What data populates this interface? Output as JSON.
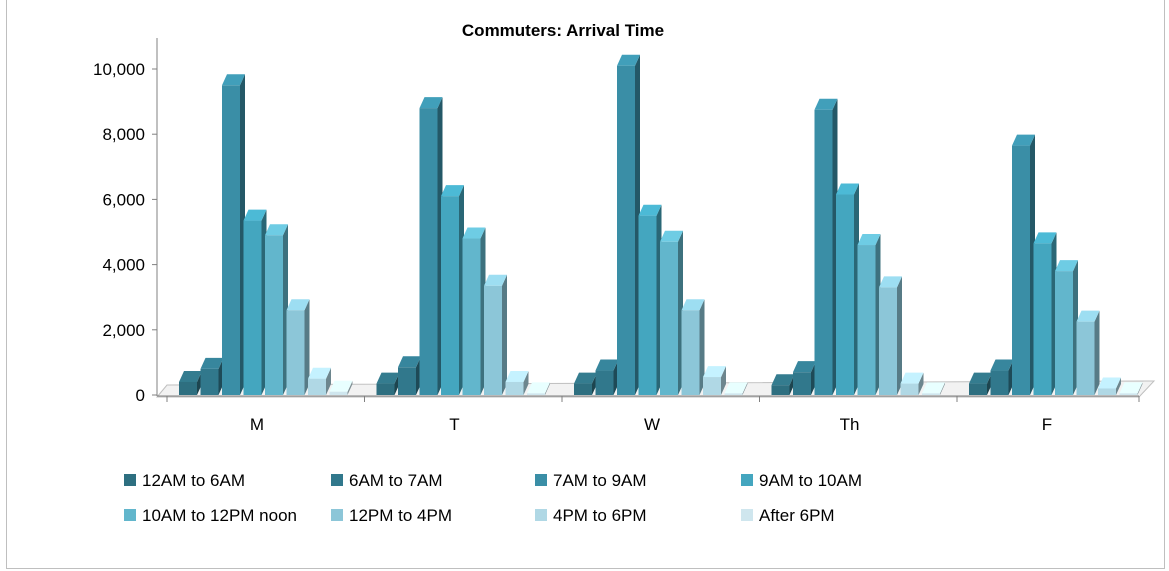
{
  "chart_data": {
    "type": "bar",
    "title": "Commuters: Arrival Time",
    "xlabel": "",
    "ylabel": "",
    "categories": [
      "M",
      "T",
      "W",
      "Th",
      "F"
    ],
    "y_ticks": [
      "0",
      "2,000",
      "4,000",
      "6,000",
      "8,000",
      "10,000"
    ],
    "ylim": [
      0,
      10000
    ],
    "legend_position": "bottom",
    "series": [
      {
        "name": "12AM to 6AM",
        "color": "#2E6F80",
        "values": [
          400,
          350,
          350,
          300,
          350
        ]
      },
      {
        "name": "6AM to 7AM",
        "color": "#31788C",
        "values": [
          800,
          850,
          750,
          700,
          750
        ]
      },
      {
        "name": "7AM to 9AM",
        "color": "#3A8EA6",
        "values": [
          9500,
          8800,
          10100,
          8750,
          7650
        ]
      },
      {
        "name": "9AM to 10AM",
        "color": "#44A6BF",
        "values": [
          5350,
          6100,
          5500,
          6150,
          4650
        ]
      },
      {
        "name": "10AM to 12PM noon",
        "color": "#62B6CC",
        "values": [
          4900,
          4800,
          4700,
          4600,
          3800
        ]
      },
      {
        "name": "12PM to 4PM",
        "color": "#8CC6D8",
        "values": [
          2600,
          3350,
          2600,
          3300,
          2250
        ]
      },
      {
        "name": "4PM to 6PM",
        "color": "#B0D8E5",
        "values": [
          500,
          400,
          550,
          350,
          200
        ]
      },
      {
        "name": "After 6PM",
        "color": "#CFE6EE",
        "values": [
          100,
          50,
          50,
          50,
          50
        ]
      }
    ]
  }
}
